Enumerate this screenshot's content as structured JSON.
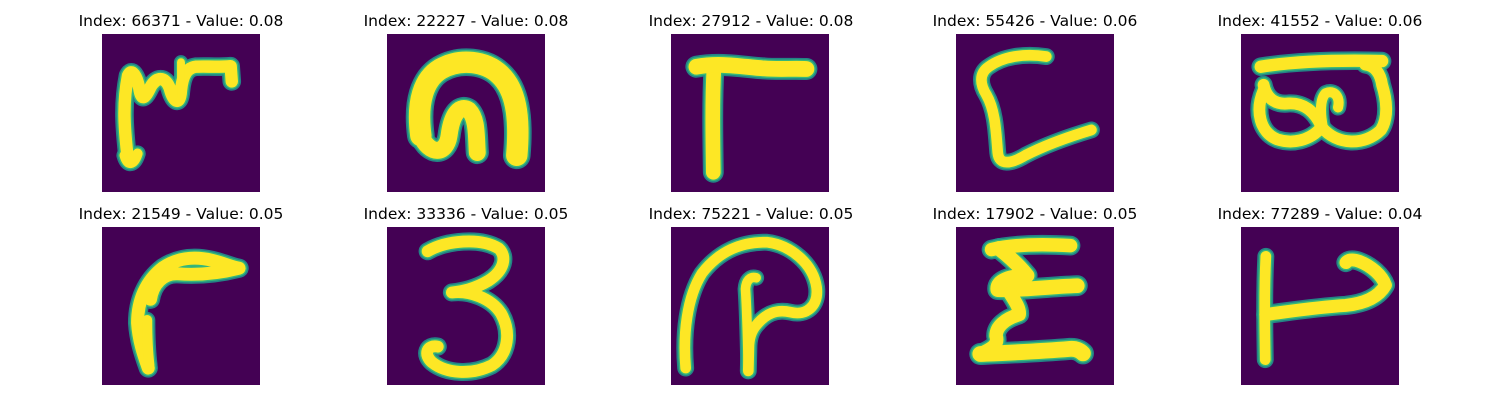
{
  "figure": {
    "panels": [
      {
        "title": "Index: 66371 - Value: 0.08",
        "glyph": "handwritten-m-with-stroke"
      },
      {
        "title": "Index: 22227 - Value: 0.08",
        "glyph": "handwritten-n-arch"
      },
      {
        "title": "Index: 27912 - Value: 0.08",
        "glyph": "handwritten-r-gamma"
      },
      {
        "title": "Index: 55426 - Value: 0.06",
        "glyph": "handwritten-l-curl"
      },
      {
        "title": "Index: 41552 - Value: 0.06",
        "glyph": "handwritten-b-rotated"
      },
      {
        "title": "Index: 21549 - Value: 0.05",
        "glyph": "handwritten-r-flag"
      },
      {
        "title": "Index: 33336 - Value: 0.05",
        "glyph": "handwritten-3"
      },
      {
        "title": "Index: 75221 - Value: 0.05",
        "glyph": "handwritten-p-loop"
      },
      {
        "title": "Index: 17902 - Value: 0.05",
        "glyph": "handwritten-e-zigzag"
      },
      {
        "title": "Index: 77289 - Value: 0.04",
        "glyph": "handwritten-t-hook"
      }
    ],
    "colors": {
      "background": "#440154",
      "stroke_core": "#fde725",
      "stroke_edge": "#35b779",
      "stroke_halo": "#21918c"
    }
  }
}
